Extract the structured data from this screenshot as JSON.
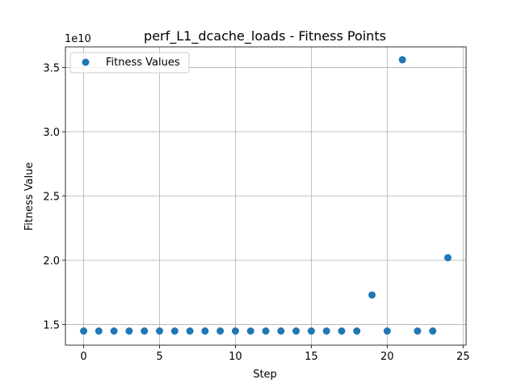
{
  "chart_data": {
    "type": "scatter",
    "title": "perf_L1_dcache_loads - Fitness Points",
    "xlabel": "Step",
    "ylabel": "Fitness Value",
    "y_scale_label": "1e10",
    "xlim": [
      -1.2,
      25.2
    ],
    "ylim": [
      1.34,
      3.66
    ],
    "x_ticks": [
      0,
      5,
      10,
      15,
      20,
      25
    ],
    "x_tick_labels": [
      "0",
      "5",
      "10",
      "15",
      "20",
      "25"
    ],
    "y_ticks": [
      1.5,
      2.0,
      2.5,
      3.0,
      3.5
    ],
    "y_tick_labels": [
      "1.5",
      "2.0",
      "2.5",
      "3.0",
      "3.5"
    ],
    "grid": true,
    "legend_position": "top-left",
    "series": [
      {
        "name": "Fitness Values",
        "color": "#1f77b4",
        "x": [
          0,
          1,
          2,
          3,
          4,
          5,
          6,
          7,
          8,
          9,
          10,
          11,
          12,
          13,
          14,
          15,
          16,
          17,
          18,
          19,
          20,
          21,
          22,
          23,
          24
        ],
        "y": [
          1.45,
          1.45,
          1.45,
          1.45,
          1.45,
          1.45,
          1.45,
          1.45,
          1.45,
          1.45,
          1.45,
          1.45,
          1.45,
          1.45,
          1.45,
          1.45,
          1.45,
          1.45,
          1.45,
          1.73,
          1.45,
          3.56,
          1.45,
          1.45,
          2.02
        ]
      }
    ]
  }
}
